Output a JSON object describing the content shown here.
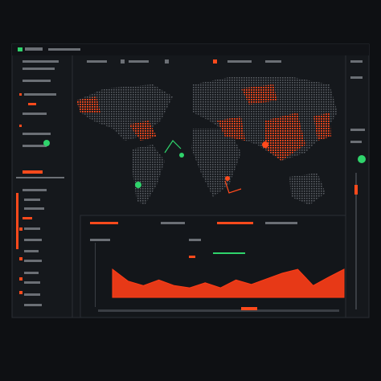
{
  "chart_data": {
    "type": "area",
    "color": "#ff3d17",
    "values": [
      5,
      2.9,
      2.1,
      3.1,
      2.1,
      1.7,
      2.6,
      1.7,
      3.1,
      2.3,
      3.3,
      4.3,
      5,
      2.1,
      3.6,
      5
    ],
    "ylim": [
      0,
      10
    ]
  }
}
